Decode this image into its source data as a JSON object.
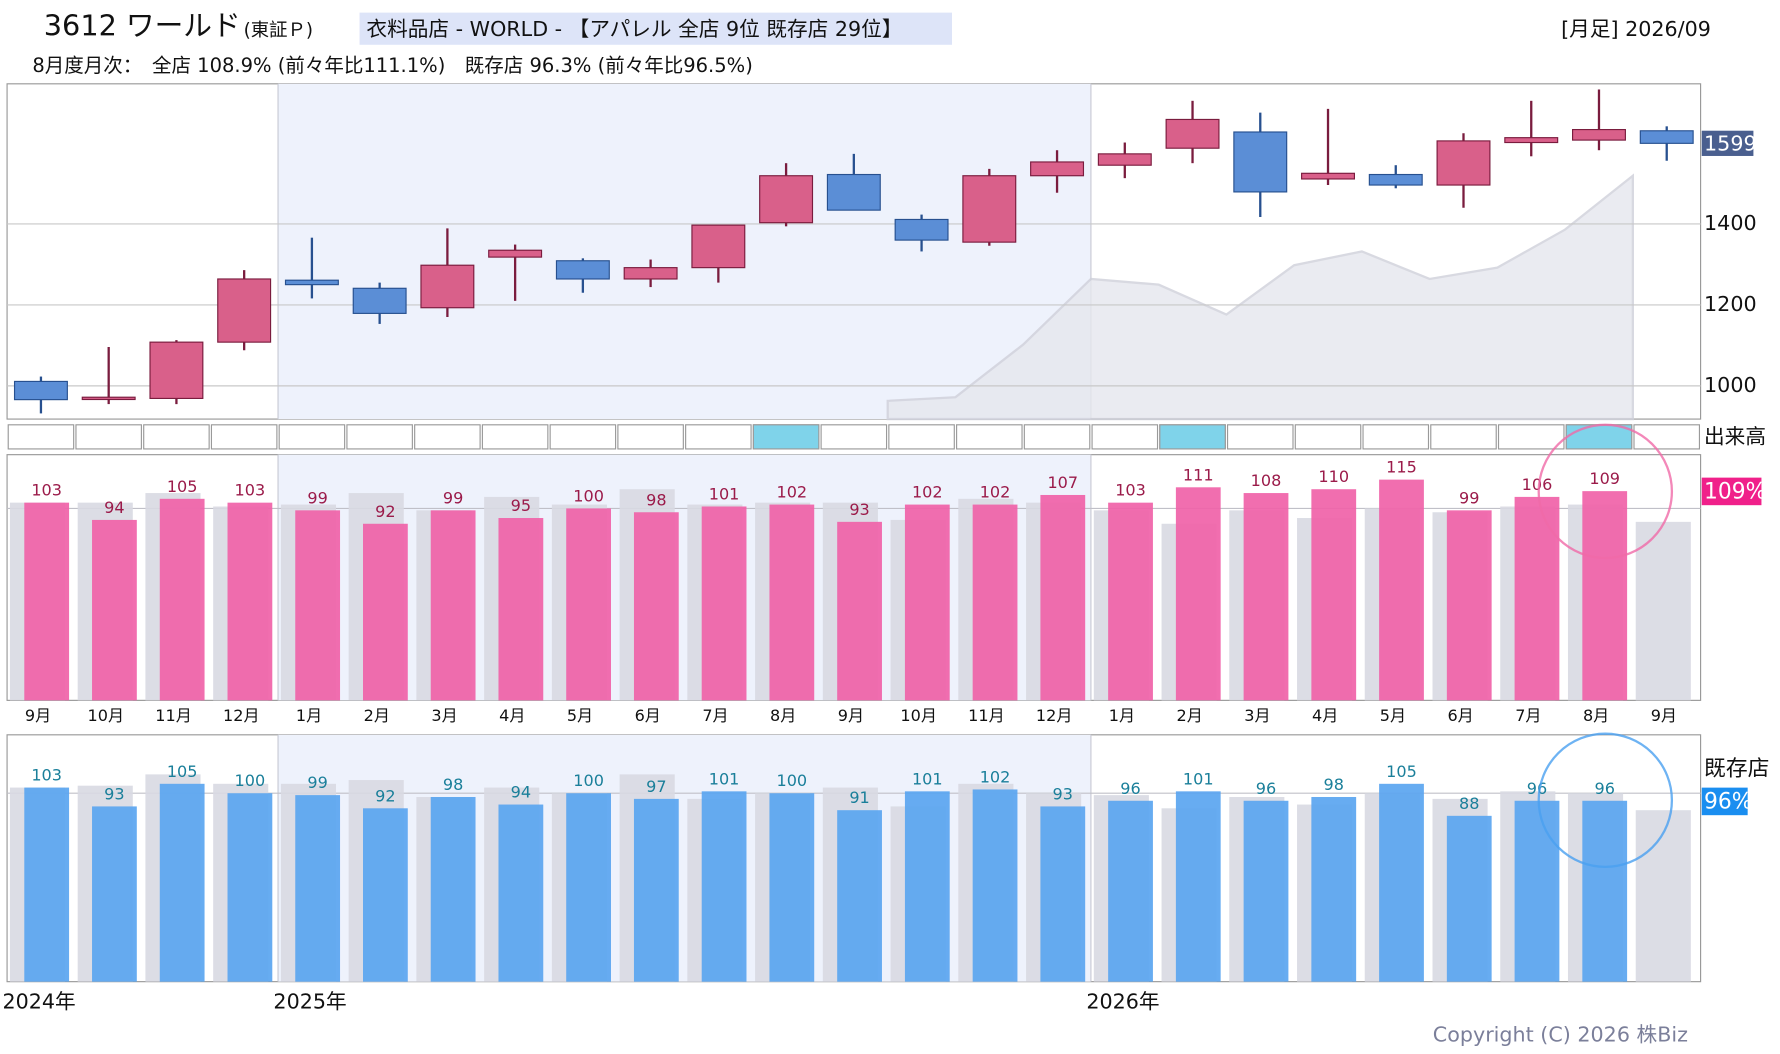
{
  "header": {
    "code_name": "3612 ワールド",
    "market": "(東証Ｐ)",
    "sector": "衣料品店 - WORLD - 【アパレル 全店 9位 既存店 29位】",
    "period": "[月足] 2026/09",
    "summary": "8月度月次：　全店 108.9% (前々年比111.1%)　既存店 96.3% (前々年比96.5%)"
  },
  "copyright": "Copyright (C) 2026 株Biz",
  "chart_data": [
    {
      "type": "candlestick",
      "categories": [
        "9月",
        "10月",
        "11月",
        "12月",
        "1月",
        "2月",
        "3月",
        "4月",
        "5月",
        "6月",
        "7月",
        "8月",
        "9月",
        "10月",
        "11月",
        "12月",
        "1月",
        "2月",
        "3月",
        "4月",
        "5月",
        "6月",
        "7月",
        "8月",
        "9月"
      ],
      "year_labels": [
        "2024年",
        "2025年",
        "2026年"
      ],
      "year_starts": [
        0,
        4,
        16
      ],
      "open": [
        1011,
        968,
        969,
        1108,
        1261,
        1241,
        1193,
        1318,
        1309,
        1264,
        1292,
        1403,
        1522,
        1411,
        1355,
        1519,
        1545,
        1587,
        1627,
        1511,
        1522,
        1496,
        1601,
        1607,
        1630
      ],
      "high": [
        1023,
        1096,
        1113,
        1286,
        1366,
        1255,
        1389,
        1349,
        1315,
        1312,
        1397,
        1550,
        1573,
        1423,
        1536,
        1582,
        1601,
        1704,
        1675,
        1684,
        1545,
        1624,
        1704,
        1732,
        1641
      ],
      "low": [
        932,
        955,
        955,
        1088,
        1216,
        1153,
        1170,
        1210,
        1230,
        1244,
        1255,
        1394,
        1434,
        1332,
        1346,
        1477,
        1513,
        1550,
        1417,
        1496,
        1488,
        1440,
        1567,
        1582,
        1556
      ],
      "close": [
        966,
        972,
        1108,
        1264,
        1250,
        1179,
        1298,
        1335,
        1264,
        1292,
        1397,
        1519,
        1434,
        1360,
        1519,
        1553,
        1573,
        1658,
        1479,
        1525,
        1496,
        1605,
        1613,
        1633,
        1599
      ],
      "area_values": [
        null,
        null,
        null,
        null,
        null,
        null,
        null,
        null,
        null,
        null,
        null,
        null,
        null,
        963,
        972,
        1102,
        1264,
        1250,
        1176,
        1298,
        1332,
        1264,
        1292,
        1386,
        1519
      ],
      "up_color": "#d9608a",
      "down_color": "#5b8ed6",
      "ylim": [
        918,
        1746
      ],
      "yticks": [
        1000,
        1200,
        1400
      ],
      "grid": true,
      "last_price": 1599,
      "volume_label": "出来高",
      "volume_highlight": [
        11,
        17,
        23
      ]
    },
    {
      "type": "bar",
      "color": "#f062a8",
      "prior_color": "#d8d9e2",
      "label_color": "#9b1b4a",
      "values": [
        103,
        94,
        105,
        103,
        99,
        92,
        99,
        95,
        100,
        98,
        101,
        102,
        93,
        102,
        102,
        107,
        103,
        111,
        108,
        110,
        115,
        99,
        106,
        109,
        null
      ],
      "prior_values": [
        103,
        103,
        108,
        101,
        102,
        108,
        99,
        106,
        102,
        110,
        102,
        103,
        103,
        94,
        105,
        103,
        99,
        92,
        99,
        95,
        100,
        98,
        101,
        102,
        93
      ],
      "ylim": [
        0,
        128
      ],
      "refline": 100,
      "current": {
        "value": 108.9,
        "label": "109%"
      },
      "badge_color": "#f0208a"
    },
    {
      "type": "bar",
      "label": "既存店",
      "color": "#5aa5f0",
      "prior_color": "#d8d9e2",
      "label_color": "#1a7f9a",
      "values": [
        103,
        93,
        105,
        100,
        99,
        92,
        98,
        94,
        100,
        97,
        101,
        100,
        91,
        101,
        102,
        93,
        96,
        101,
        96,
        98,
        105,
        88,
        96,
        96,
        null
      ],
      "prior_values": [
        103,
        104,
        110,
        105,
        105,
        107,
        98,
        103,
        100,
        110,
        97,
        100,
        103,
        93,
        105,
        100,
        99,
        92,
        98,
        94,
        100,
        97,
        101,
        100,
        91
      ],
      "ylim": [
        0,
        131
      ],
      "refline": 100,
      "current": {
        "value": 96.3,
        "label": "96%"
      },
      "badge_color": "#1a8ef0"
    }
  ]
}
